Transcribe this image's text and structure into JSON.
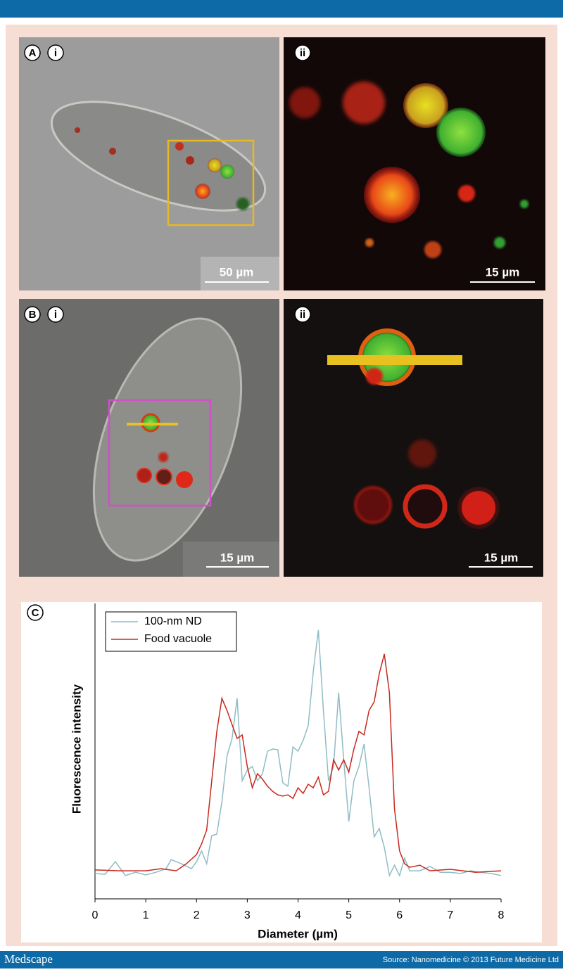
{
  "figure": {
    "panel_a": {
      "label": "A",
      "sub_i": "i",
      "sub_ii": "ii",
      "scale_i": "50 µm",
      "scale_ii": "15 µm"
    },
    "panel_b": {
      "label": "B",
      "sub_i": "i",
      "sub_ii": "ii",
      "scale_i": "15 µm",
      "scale_ii": "15 µm"
    },
    "panel_c": {
      "label": "C"
    }
  },
  "chart_data": {
    "type": "line",
    "xlabel": "Diameter (µm)",
    "ylabel": "Fluorescence intensity",
    "xlim": [
      0,
      8
    ],
    "xticks": [
      0,
      1,
      2,
      3,
      4,
      5,
      6,
      7,
      8
    ],
    "ylim": [
      0,
      100
    ],
    "legend": "upper left",
    "series": [
      {
        "name": "100-nm ND",
        "color": "#8fbcc4",
        "x": [
          0,
          0.2,
          0.4,
          0.6,
          0.8,
          1.0,
          1.2,
          1.4,
          1.5,
          1.7,
          1.9,
          2.0,
          2.1,
          2.2,
          2.3,
          2.4,
          2.5,
          2.6,
          2.7,
          2.8,
          2.9,
          3.0,
          3.1,
          3.2,
          3.3,
          3.4,
          3.5,
          3.6,
          3.7,
          3.8,
          3.9,
          4.0,
          4.1,
          4.2,
          4.3,
          4.4,
          4.5,
          4.6,
          4.7,
          4.8,
          4.9,
          5.0,
          5.1,
          5.2,
          5.3,
          5.4,
          5.5,
          5.6,
          5.7,
          5.8,
          5.9,
          6.0,
          6.1,
          6.2,
          6.4,
          6.6,
          6.8,
          7.0,
          7.2,
          7.4,
          7.6,
          7.8,
          8.0
        ],
        "values": [
          8.6,
          8.3,
          12.6,
          7.9,
          9.0,
          8.1,
          9.0,
          10.2,
          13.3,
          11.9,
          10.2,
          12.6,
          16.2,
          11.9,
          21.4,
          21.9,
          32.9,
          48.3,
          54.3,
          67.9,
          40.0,
          43.6,
          44.8,
          40.0,
          42.4,
          50.0,
          50.7,
          50.5,
          39.3,
          38.1,
          51.4,
          50.0,
          53.6,
          58.6,
          76.9,
          91.0,
          63.8,
          40.0,
          44.8,
          69.8,
          47.1,
          26.2,
          40.0,
          44.8,
          52.4,
          37.6,
          21.0,
          23.8,
          17.4,
          7.9,
          11.4,
          7.9,
          13.8,
          9.5,
          9.5,
          11.0,
          9.0,
          9.0,
          8.6,
          9.5,
          9.0,
          8.6,
          7.9
        ]
      },
      {
        "name": "Food vacuole",
        "color": "#c8281e",
        "x": [
          0,
          0.5,
          1.0,
          1.3,
          1.6,
          1.8,
          2.0,
          2.1,
          2.2,
          2.3,
          2.4,
          2.5,
          2.6,
          2.7,
          2.8,
          2.9,
          3.0,
          3.1,
          3.2,
          3.3,
          3.4,
          3.5,
          3.6,
          3.7,
          3.8,
          3.9,
          4.0,
          4.1,
          4.2,
          4.3,
          4.4,
          4.5,
          4.6,
          4.7,
          4.8,
          4.9,
          5.0,
          5.1,
          5.2,
          5.3,
          5.4,
          5.5,
          5.6,
          5.7,
          5.8,
          5.9,
          6.0,
          6.1,
          6.2,
          6.4,
          6.6,
          7.0,
          7.5,
          8.0
        ],
        "values": [
          9.8,
          9.5,
          9.5,
          10.2,
          9.5,
          11.9,
          15.0,
          18.6,
          23.3,
          40.0,
          56.7,
          67.9,
          63.8,
          59.0,
          54.3,
          55.5,
          44.8,
          37.6,
          42.4,
          40.5,
          38.1,
          36.4,
          35.2,
          34.8,
          35.2,
          34.0,
          37.6,
          35.7,
          38.8,
          37.6,
          41.2,
          35.2,
          36.4,
          47.1,
          43.6,
          47.1,
          42.9,
          50.7,
          56.7,
          55.5,
          63.8,
          66.7,
          76.2,
          82.9,
          69.8,
          30.5,
          16.2,
          11.9,
          10.7,
          11.4,
          9.5,
          10.0,
          9.0,
          9.5
        ]
      }
    ]
  },
  "footer": {
    "logo": "Medscape",
    "source": "Source: Nanomedicine © 2013 Future Medicine Ltd"
  }
}
